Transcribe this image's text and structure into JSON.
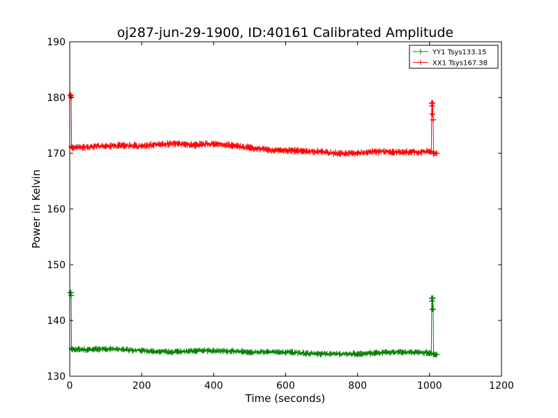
{
  "chart_data": {
    "type": "line",
    "title": "oj287-jun-29-1900, ID:40161 Calibrated Amplitude",
    "xlabel": "Time (seconds)",
    "ylabel": "Power in Kelvin",
    "xlim": [
      0,
      1200
    ],
    "ylim": [
      130,
      190
    ],
    "xticks": [
      0,
      200,
      400,
      600,
      800,
      1000,
      1200
    ],
    "yticks": [
      130,
      140,
      150,
      160,
      170,
      180,
      190
    ],
    "grid": false,
    "legend_position": "top-right",
    "series": [
      {
        "name": "YY1 Tsys133.15",
        "color": "#008000",
        "marker": "+",
        "noise": 0.7,
        "x": [
          2,
          3,
          4,
          5,
          6,
          7,
          50,
          100,
          150,
          200,
          250,
          300,
          350,
          400,
          450,
          500,
          550,
          600,
          650,
          700,
          750,
          800,
          850,
          900,
          950,
          1000,
          1005,
          1006,
          1007,
          1008,
          1009,
          1010,
          1011,
          1012,
          1020
        ],
        "y": [
          145,
          145,
          144.5,
          135,
          134.9,
          134.8,
          134.8,
          134.9,
          134.8,
          134.6,
          134.4,
          134.4,
          134.5,
          134.6,
          134.5,
          134.3,
          134.4,
          134.3,
          134.1,
          134,
          134,
          134,
          134.2,
          134.3,
          134.3,
          134.2,
          134.1,
          144,
          143.5,
          142,
          144,
          142,
          134,
          133.9,
          133.9
        ]
      },
      {
        "name": "XX1 Tsys167.38",
        "color": "#ff0000",
        "marker": "+",
        "noise": 0.8,
        "x": [
          2,
          3,
          4,
          5,
          6,
          7,
          50,
          100,
          150,
          200,
          250,
          300,
          350,
          400,
          450,
          500,
          550,
          600,
          650,
          700,
          750,
          800,
          850,
          900,
          950,
          1000,
          1005,
          1006,
          1007,
          1008,
          1009,
          1010,
          1011,
          1012,
          1020
        ],
        "y": [
          180.5,
          180.3,
          180,
          171.2,
          171.1,
          171,
          171.1,
          171.3,
          171.4,
          171.3,
          171.6,
          171.7,
          171.5,
          171.7,
          171.4,
          171,
          170.6,
          170.5,
          170.4,
          170.2,
          170,
          170,
          170.3,
          170.2,
          170.2,
          170.3,
          170.3,
          179,
          178.5,
          177,
          179,
          176,
          170.1,
          170,
          170
        ]
      }
    ]
  }
}
